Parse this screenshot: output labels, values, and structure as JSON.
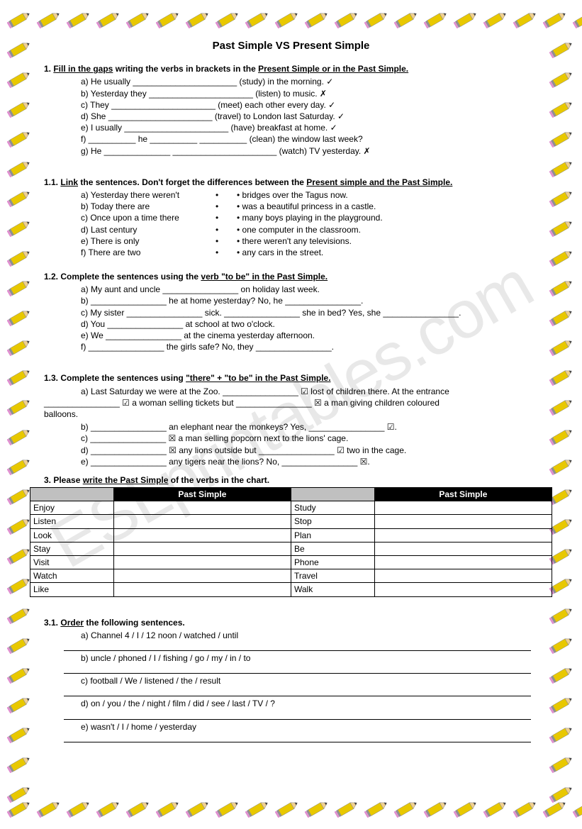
{
  "watermark": "ESLprintables.com",
  "title": "Past Simple VS Present Simple",
  "ex1": {
    "instruction_pre": "1. ",
    "instruction_u1": "Fill in the gaps",
    "instruction_mid": " writing the verbs in brackets in the ",
    "instruction_u2": "Present Simple or in the Past Simple.",
    "items": [
      "a) He usually ______________________ (study) in the morning. ✓",
      "b) Yesterday they ______________________ (listen) to music. ✗",
      "c) They ______________________ (meet) each other every day. ✓",
      "d) She ______________________ (travel) to London last Saturday. ✓",
      "e) I usually ______________________ (have) breakfast at home. ✓",
      "f) __________ he __________ __________ (clean) the window last week?",
      "g) He ______________ ______________________ (watch) TV yesterday. ✗"
    ]
  },
  "ex11": {
    "instruction_pre": "1.1. ",
    "instruction_u1": "Link",
    "instruction_mid": " the sentences. Don't forget the differences between the ",
    "instruction_u2": "Present simple and the Past Simple.",
    "left": [
      "a) Yesterday there weren't",
      "b) Today there are",
      "c) Once upon a time there",
      "d) Last century",
      "e) There is only",
      "f) There are two"
    ],
    "right": [
      "• bridges over the Tagus now.",
      "• was a beautiful princess in a castle.",
      "• many boys playing in the playground.",
      "• one computer in the classroom.",
      "• there weren't any televisions.",
      "• any cars in the street."
    ]
  },
  "ex12": {
    "instruction_pre": "1.2. Complete the sentences using the ",
    "instruction_u1": "verb \"to be\" in the Past Simple.",
    "items": [
      "a) My aunt and uncle ________________ on holiday last week.",
      "b) ________________ he at home yesterday? No, he ________________.",
      "c) My sister ________________ sick. ________________ she in bed? Yes, she ________________.",
      "d) You ________________ at school at two o'clock.",
      "e) We ________________ at the cinema yesterday afternoon.",
      "f) ________________ the girls safe? No, they ________________."
    ]
  },
  "ex13": {
    "instruction_pre": "1.3. Complete the sentences using ",
    "instruction_u1": "\"there\" + \"to be\" in the Past Simple.",
    "items": [
      "a) Last Saturday we were at the Zoo. ________________ ☑ lost of children there. At the entrance",
      "________________ ☑ a woman selling tickets but ________________ ☒ a man giving children coloured",
      "b) ________________ an elephant near the monkeys? Yes, ________________ ☑.",
      "c) ________________ ☒ a man selling popcorn next to the lions' cage.",
      "d) ________________ ☒ any lions outside but ________________ ☑ two in the cage.",
      "e) ________________ any tigers near the lions? No, ________________ ☒."
    ],
    "balloons": "balloons."
  },
  "ex3": {
    "instruction_pre": "3. Please ",
    "instruction_u1": "write the Past Simple",
    "instruction_post": " of the verbs in the chart.",
    "header": "Past Simple",
    "left_verbs": [
      "Enjoy",
      "Listen",
      "Look",
      "Stay",
      "Visit",
      "Watch",
      "Like"
    ],
    "right_verbs": [
      "Study",
      "Stop",
      "Plan",
      "Be",
      "Phone",
      "Travel",
      "Walk"
    ]
  },
  "ex31": {
    "instruction_pre": "3.1. ",
    "instruction_u1": "Order",
    "instruction_post": " the following sentences.",
    "items": [
      "a) Channel 4 / I / 12 noon / watched / until",
      "b) uncle / phoned / I / fishing / go / my / in / to",
      "c) football / We / listened / the / result",
      "d) on / you / the / night / film / did / see / last / TV / ?",
      "e) wasn't / I / home / yesterday"
    ]
  },
  "pencil": {
    "body_color": "#e8c800",
    "tip_color": "#f0d090",
    "eraser_color": "#e090d0",
    "band_color": "#909090"
  }
}
